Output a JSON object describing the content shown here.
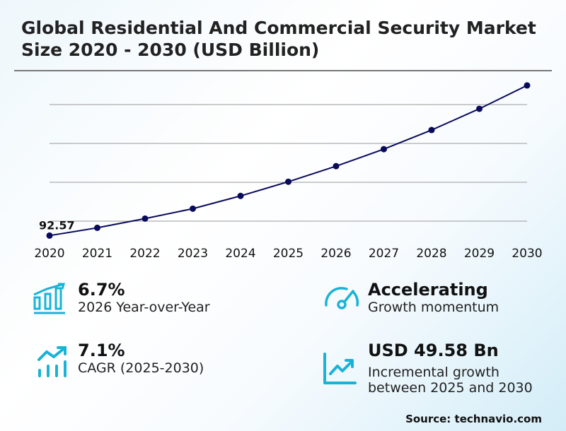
{
  "title": "Global Residential And Commercial Security Market Size 2020 - 2030 (USD Billion)",
  "chart_data": {
    "type": "line",
    "title": "Global Residential And Commercial Security Market Size 2020 - 2030 (USD Billion)",
    "x": [
      "2020",
      "2021",
      "2022",
      "2023",
      "2024",
      "2025",
      "2026",
      "2027",
      "2028",
      "2029",
      "2030"
    ],
    "values": [
      92.57,
      96.58,
      101.32,
      106.42,
      112.99,
      120.28,
      128.3,
      137.05,
      146.89,
      157.83,
      169.86
    ],
    "data_labels": [
      {
        "x": "2020",
        "text": "92.57"
      }
    ],
    "gridlines_y": [
      100,
      120,
      140,
      160
    ],
    "grid": true,
    "line_color": "#0a0a5c"
  },
  "stats": [
    {
      "value": "6.7%",
      "label": "2026 Year-over-Year",
      "icon": "bar-chart-growth-icon"
    },
    {
      "value": "Accelerating",
      "label": "Growth momentum",
      "icon": "speedometer-icon"
    },
    {
      "value": "7.1%",
      "label": "CAGR (2025-2030)",
      "icon": "trend-up-bars-icon"
    },
    {
      "value": "USD 49.58 Bn",
      "label": "Incremental growth between 2025 and 2030",
      "icon": "line-chart-up-icon"
    }
  ],
  "accent_color": "#1ab3d6",
  "source": "Source: technavio.com"
}
